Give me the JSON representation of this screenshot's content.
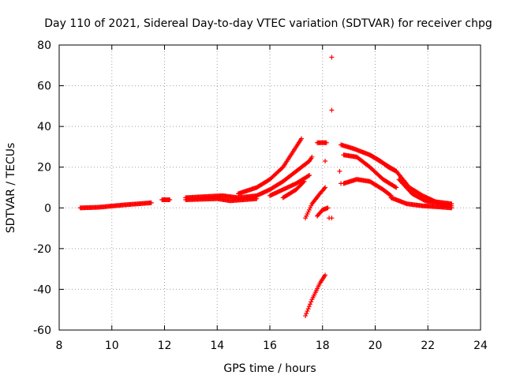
{
  "chart_data": {
    "type": "scatter",
    "title": "Day 110 of 2021, Sidereal Day-to-day VTEC variation (SDTVAR) for receiver chpg",
    "xlabel": "GPS time / hours",
    "ylabel": "SDTVAR / TECUs",
    "xlim": [
      8,
      24
    ],
    "ylim": [
      -60,
      80
    ],
    "xticks": [
      8,
      10,
      12,
      14,
      16,
      18,
      20,
      22,
      24
    ],
    "yticks": [
      -60,
      -40,
      -20,
      0,
      20,
      40,
      60,
      80
    ],
    "grid": true,
    "marker": "+",
    "color": "#ff0000",
    "tracks": [
      {
        "x": [
          8.8,
          9.5,
          10.5,
          11.5
        ],
        "y": [
          0.0,
          0.3,
          1.5,
          2.5
        ]
      },
      {
        "x": [
          11.9,
          12.2
        ],
        "y": [
          4.0,
          4.0
        ]
      },
      {
        "x": [
          12.8,
          13.5,
          14.2,
          14.8,
          15.5
        ],
        "y": [
          5.0,
          5.5,
          6.0,
          5.0,
          6.0
        ]
      },
      {
        "x": [
          12.8,
          14.0,
          14.5,
          15.5
        ],
        "y": [
          4.0,
          4.5,
          3.5,
          4.5
        ]
      },
      {
        "x": [
          14.8,
          15.5,
          16.0,
          16.5,
          17.0,
          17.2
        ],
        "y": [
          7.0,
          10.0,
          14.0,
          20.0,
          30.0,
          34.0
        ]
      },
      {
        "x": [
          15.5,
          16.0,
          16.5,
          17.0,
          17.5,
          17.6
        ],
        "y": [
          6.0,
          9.0,
          13.0,
          18.0,
          23.0,
          25.0
        ]
      },
      {
        "x": [
          16.0,
          16.5,
          17.0,
          17.5
        ],
        "y": [
          6.0,
          9.0,
          12.0,
          16.0
        ]
      },
      {
        "x": [
          16.5,
          17.0,
          17.3
        ],
        "y": [
          5.0,
          9.0,
          13.0
        ]
      },
      {
        "x": [
          17.35,
          17.6,
          17.9,
          18.1
        ],
        "y": [
          -5.0,
          2.0,
          7.0,
          10.0
        ]
      },
      {
        "x": [
          17.8,
          18.0,
          18.2
        ],
        "y": [
          -4.0,
          -1.0,
          0.0
        ]
      },
      {
        "x": [
          17.35,
          17.6,
          17.9,
          18.1
        ],
        "y": [
          -53.0,
          -45.0,
          -37.0,
          -33.0
        ]
      },
      {
        "x": [
          17.8,
          18.15
        ],
        "y": [
          32.0,
          32.0
        ]
      },
      {
        "x": [
          18.7,
          19.2,
          19.8,
          20.3,
          20.8
        ],
        "y": [
          31.0,
          29.0,
          26.0,
          22.0,
          18.0
        ]
      },
      {
        "x": [
          18.8,
          19.3,
          19.8,
          20.3,
          20.8
        ],
        "y": [
          26.0,
          25.0,
          20.0,
          14.0,
          10.0
        ]
      },
      {
        "x": [
          18.8,
          19.3,
          19.8,
          20.3,
          20.6
        ],
        "y": [
          12.0,
          14.0,
          13.0,
          9.0,
          6.0
        ]
      },
      {
        "x": [
          19.8,
          20.2,
          20.5,
          20.8
        ],
        "y": [
          26.0,
          23.0,
          20.0,
          18.0
        ]
      },
      {
        "x": [
          20.8,
          21.3,
          21.8,
          22.3,
          22.9
        ],
        "y": [
          18.0,
          10.0,
          6.0,
          3.0,
          2.0
        ]
      },
      {
        "x": [
          20.9,
          21.4,
          21.9,
          22.4,
          22.9
        ],
        "y": [
          14.0,
          7.0,
          3.5,
          2.0,
          1.0
        ]
      },
      {
        "x": [
          20.6,
          21.2,
          21.8,
          22.4,
          22.9
        ],
        "y": [
          5.0,
          2.0,
          1.0,
          0.5,
          0.0
        ]
      }
    ],
    "isolated_points": [
      {
        "x": 18.35,
        "y": 74
      },
      {
        "x": 18.35,
        "y": 48
      },
      {
        "x": 18.1,
        "y": 23
      },
      {
        "x": 18.65,
        "y": 18
      },
      {
        "x": 18.7,
        "y": 12
      },
      {
        "x": 18.25,
        "y": -5
      },
      {
        "x": 18.35,
        "y": -5
      }
    ]
  }
}
